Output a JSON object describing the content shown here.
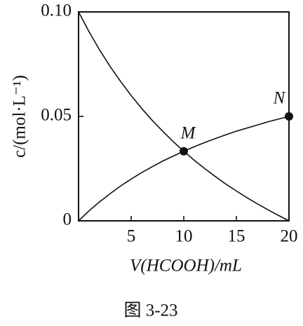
{
  "chart_data": {
    "type": "line",
    "x_label": "V(HCOOH)/mL",
    "y_label": "c/(mol·L⁻¹)",
    "caption": "图 3-23",
    "x": [
      0,
      1,
      2,
      3,
      4,
      5,
      6,
      7,
      8,
      9,
      10,
      11,
      12,
      13,
      14,
      15,
      16,
      17,
      18,
      19,
      20
    ],
    "series": [
      {
        "color": "#111111",
        "values": [
          0.1,
          0.0905,
          0.0818,
          0.0739,
          0.0667,
          0.06,
          0.0538,
          0.0481,
          0.0429,
          0.0379,
          0.0333,
          0.029,
          0.025,
          0.0212,
          0.0176,
          0.0143,
          0.0111,
          0.0081,
          0.0053,
          0.0026,
          0
        ]
      },
      {
        "color": "#111111",
        "values": [
          0,
          0.0048,
          0.0091,
          0.013,
          0.0167,
          0.02,
          0.0231,
          0.0259,
          0.0286,
          0.031,
          0.0333,
          0.0355,
          0.0375,
          0.0394,
          0.0412,
          0.0429,
          0.0444,
          0.0459,
          0.0474,
          0.0487,
          0.05
        ]
      }
    ],
    "points": [
      {
        "label": "M",
        "x": 10,
        "y": 0.0333
      },
      {
        "label": "N",
        "x": 20,
        "y": 0.05
      }
    ],
    "xlim": [
      0,
      20
    ],
    "xticks": [
      5,
      10,
      15,
      20
    ],
    "ylim": [
      0,
      0.1
    ],
    "yticks": [
      0,
      0.05,
      {
        "value": 0.1,
        "label": "0.10"
      }
    ]
  }
}
